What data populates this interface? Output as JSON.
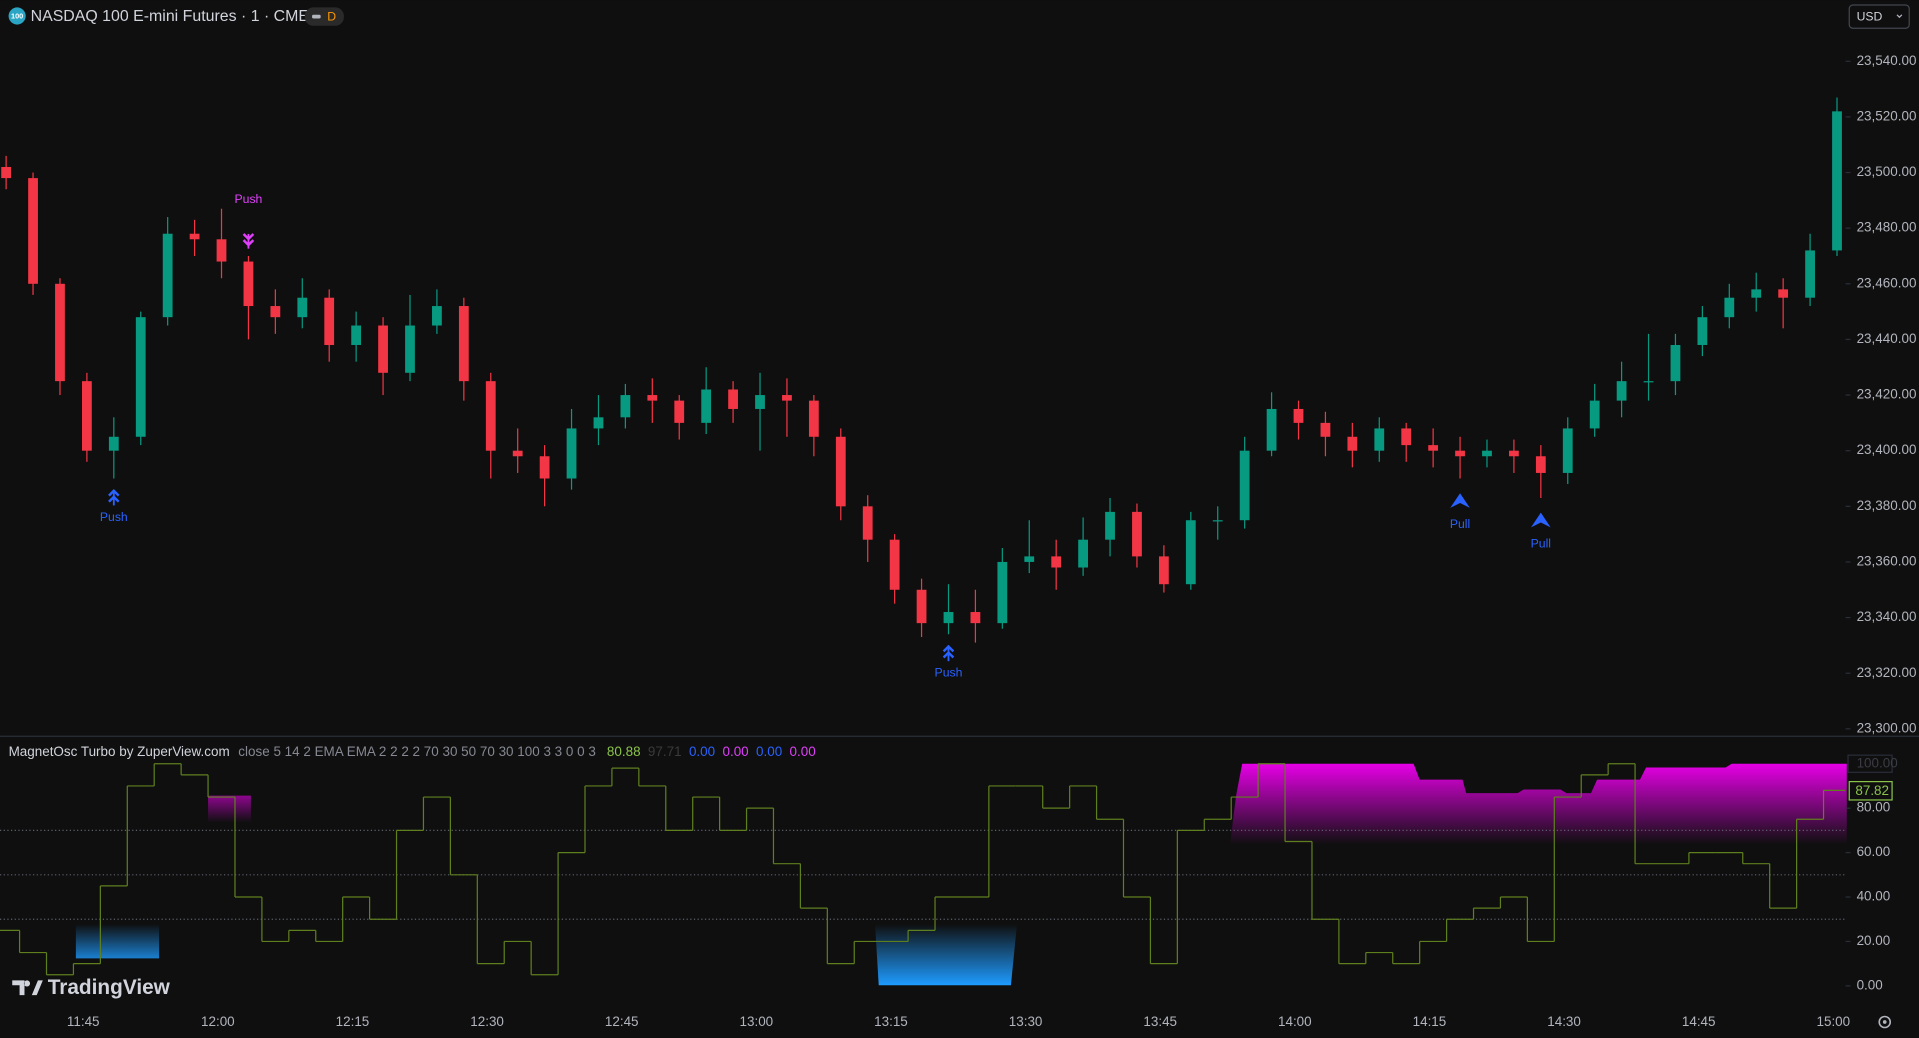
{
  "header": {
    "symbol_icon": "100",
    "title": "NASDAQ 100 E-mini Futures · 1 · CME",
    "badge": "D",
    "currency": "USD"
  },
  "watermark": "TradingView",
  "chart_data": [
    {
      "type": "candlestick",
      "categories": [
        null,
        null,
        null,
        "11:45",
        null,
        null,
        null,
        null,
        "12:00",
        null,
        null,
        null,
        null,
        "12:15",
        null,
        null,
        null,
        null,
        "12:30",
        null,
        null,
        null,
        null,
        "12:45",
        null,
        null,
        null,
        null,
        "13:00",
        null,
        null,
        null,
        null,
        "13:15",
        null,
        null,
        null,
        null,
        "13:30",
        null,
        null,
        null,
        null,
        "13:45",
        null,
        null,
        null,
        null,
        "14:00",
        null,
        null,
        null,
        null,
        "14:15",
        null,
        null,
        null,
        null,
        "14:30",
        null,
        null,
        null,
        null,
        "14:45",
        null,
        null,
        null,
        null,
        "15:00"
      ],
      "open": [
        23502,
        23498,
        23460,
        23425,
        23400,
        23405,
        23448,
        23478,
        23476,
        23468,
        23452,
        23448,
        23455,
        23438,
        23445,
        23428,
        23445,
        23452,
        23425,
        23400,
        23398,
        23390,
        23408,
        23412,
        23420,
        23418,
        23410,
        23422,
        23415,
        23420,
        23418,
        23405,
        23380,
        23368,
        23350,
        23338,
        23342,
        23338,
        23360,
        23362,
        23358,
        23368,
        23378,
        23362,
        23352,
        23375,
        23375,
        23400,
        23415,
        23410,
        23405,
        23400,
        23408,
        23402,
        23400,
        23398,
        23400,
        23398,
        23392,
        23408,
        23418,
        23425,
        23425,
        23438,
        23448,
        23455,
        23458,
        23455,
        23472
      ],
      "high": [
        23506,
        23500,
        23462,
        23428,
        23412,
        23450,
        23484,
        23483,
        23487,
        23470,
        23458,
        23462,
        23458,
        23450,
        23448,
        23456,
        23458,
        23455,
        23428,
        23408,
        23402,
        23415,
        23420,
        23424,
        23426,
        23420,
        23430,
        23425,
        23428,
        23426,
        23420,
        23408,
        23384,
        23370,
        23354,
        23352,
        23350,
        23365,
        23375,
        23368,
        23376,
        23383,
        23381,
        23366,
        23378,
        23380,
        23405,
        23421,
        23418,
        23414,
        23410,
        23412,
        23410,
        23408,
        23405,
        23404,
        23404,
        23402,
        23412,
        23424,
        23432,
        23442,
        23442,
        23452,
        23460,
        23464,
        23462,
        23478,
        23527
      ],
      "low": [
        23494,
        23456,
        23420,
        23396,
        23390,
        23402,
        23445,
        23470,
        23462,
        23440,
        23442,
        23444,
        23432,
        23432,
        23420,
        23425,
        23442,
        23418,
        23390,
        23392,
        23380,
        23386,
        23402,
        23408,
        23410,
        23404,
        23406,
        23410,
        23400,
        23405,
        23398,
        23375,
        23360,
        23345,
        23333,
        23334,
        23331,
        23336,
        23356,
        23350,
        23355,
        23362,
        23358,
        23349,
        23350,
        23368,
        23372,
        23398,
        23404,
        23398,
        23394,
        23396,
        23396,
        23394,
        23390,
        23394,
        23392,
        23383,
        23388,
        23405,
        23412,
        23418,
        23420,
        23434,
        23444,
        23450,
        23444,
        23452,
        23470
      ],
      "close": [
        23498,
        23460,
        23425,
        23400,
        23405,
        23448,
        23478,
        23476,
        23468,
        23452,
        23448,
        23455,
        23438,
        23445,
        23428,
        23445,
        23452,
        23425,
        23400,
        23398,
        23390,
        23408,
        23412,
        23420,
        23418,
        23410,
        23422,
        23415,
        23420,
        23418,
        23405,
        23380,
        23368,
        23350,
        23338,
        23342,
        23338,
        23360,
        23362,
        23358,
        23368,
        23378,
        23362,
        23352,
        23375,
        23375,
        23400,
        23415,
        23410,
        23405,
        23400,
        23408,
        23402,
        23400,
        23398,
        23400,
        23398,
        23392,
        23408,
        23418,
        23425,
        23425,
        23438,
        23448,
        23455,
        23458,
        23455,
        23472,
        23522
      ],
      "up_color": "#089981",
      "down_color": "#f23645",
      "ylim": [
        23298,
        23562
      ],
      "yticks": [
        {
          "value": 23300,
          "label": "23,300.00"
        },
        {
          "value": 23320,
          "label": "23,320.00"
        },
        {
          "value": 23340,
          "label": "23,340.00"
        },
        {
          "value": 23360,
          "label": "23,360.00"
        },
        {
          "value": 23380,
          "label": "23,380.00"
        },
        {
          "value": 23400,
          "label": "23,400.00"
        },
        {
          "value": 23420,
          "label": "23,420.00"
        },
        {
          "value": 23440,
          "label": "23,440.00"
        },
        {
          "value": 23460,
          "label": "23,460.00"
        },
        {
          "value": 23480,
          "label": "23,480.00"
        },
        {
          "value": 23500,
          "label": "23,500.00"
        },
        {
          "value": 23520,
          "label": "23,520.00"
        },
        {
          "value": 23540,
          "label": "23,540.00"
        }
      ],
      "grid": false,
      "signals": [
        {
          "label": "Push",
          "index": 4,
          "position": "below",
          "color": "#2962ff"
        },
        {
          "label": "Push",
          "index": 9,
          "position": "above",
          "color": "#e040fb"
        },
        {
          "label": "Push",
          "index": 35,
          "position": "below",
          "color": "#2962ff"
        },
        {
          "label": "Pull",
          "index": 54,
          "position": "below",
          "color": "#2962ff"
        },
        {
          "label": "Pull",
          "index": 57,
          "position": "below",
          "color": "#2962ff"
        }
      ]
    },
    {
      "type": "step",
      "title": "MagnetOsc Turbo by ZuperView.com",
      "params": "close 5 14 2 EMA EMA 2 2 2 2 70 30 50 70 30 100 3 3 0 0 3",
      "legend_values": [
        {
          "text": "80.88",
          "color": "#8bc34a"
        },
        {
          "text": "97.71",
          "color": "#3a3a3a"
        },
        {
          "text": "0.00",
          "color": "#2962ff"
        },
        {
          "text": "0.00",
          "color": "#e040fb"
        },
        {
          "text": "0.00",
          "color": "#2962ff"
        },
        {
          "text": "0.00",
          "color": "#e040fb"
        }
      ],
      "values": [
        25,
        15,
        5,
        10,
        45,
        90,
        100,
        95,
        85,
        40,
        20,
        25,
        20,
        40,
        30,
        70,
        85,
        50,
        10,
        20,
        5,
        60,
        90,
        98,
        90,
        70,
        85,
        70,
        80,
        55,
        35,
        10,
        20,
        20,
        25,
        40,
        40,
        90,
        90,
        80,
        90,
        75,
        40,
        10,
        70,
        75,
        85,
        100,
        65,
        30,
        10,
        15,
        10,
        20,
        30,
        35,
        40,
        20,
        85,
        95,
        100,
        55,
        55,
        60,
        60,
        55,
        35,
        75,
        88
      ],
      "color": "#5f7f1f",
      "last_value": 87.82,
      "upper_tag": {
        "value": 100,
        "label": "100.00"
      },
      "levels": [
        70,
        50,
        30
      ],
      "ylim": [
        -8,
        111
      ],
      "yticks": [
        {
          "value": 0,
          "label": "0.00"
        },
        {
          "value": 20,
          "label": "20.00"
        },
        {
          "value": 40,
          "label": "40.00"
        },
        {
          "value": 60,
          "label": "60.00"
        },
        {
          "value": 80,
          "label": "80.00"
        }
      ]
    }
  ]
}
